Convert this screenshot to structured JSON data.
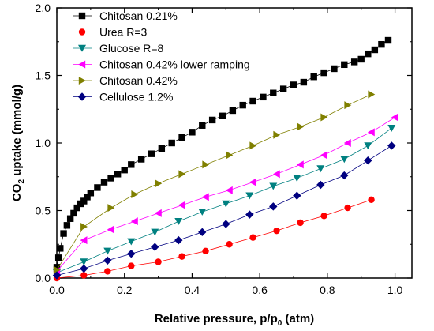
{
  "chart_data": {
    "type": "scatter",
    "title": "",
    "xlabel": "Relative pressure, p/p",
    "xlabel_sub": "0",
    "xlabel_suffix": " (atm)",
    "ylabel": "CO",
    "ylabel_sub": "2",
    "ylabel_suffix": " uptake (mmol/g)",
    "xlim": [
      0.0,
      1.05
    ],
    "ylim": [
      0.0,
      2.0
    ],
    "xticks": [
      "0.0",
      "0.2",
      "0.4",
      "0.6",
      "0.8",
      "1.0"
    ],
    "yticks": [
      "0.0",
      "0.5",
      "1.0",
      "1.5",
      "2.0"
    ],
    "grid": false,
    "legend_position": "top-left",
    "series": [
      {
        "name": "Chitosan 0.21%",
        "marker": "square",
        "color": "#000000",
        "x": [
          0.0,
          0.005,
          0.01,
          0.02,
          0.03,
          0.04,
          0.05,
          0.06,
          0.07,
          0.08,
          0.09,
          0.1,
          0.12,
          0.14,
          0.16,
          0.18,
          0.2,
          0.22,
          0.25,
          0.28,
          0.31,
          0.34,
          0.37,
          0.4,
          0.43,
          0.46,
          0.49,
          0.52,
          0.55,
          0.58,
          0.61,
          0.64,
          0.67,
          0.7,
          0.73,
          0.76,
          0.79,
          0.82,
          0.85,
          0.88,
          0.9,
          0.92,
          0.94,
          0.96,
          0.98
        ],
        "y": [
          0.08,
          0.15,
          0.22,
          0.33,
          0.39,
          0.44,
          0.48,
          0.52,
          0.55,
          0.57,
          0.6,
          0.63,
          0.67,
          0.71,
          0.74,
          0.77,
          0.8,
          0.84,
          0.88,
          0.92,
          0.96,
          1.0,
          1.04,
          1.08,
          1.13,
          1.17,
          1.2,
          1.24,
          1.28,
          1.31,
          1.34,
          1.37,
          1.4,
          1.43,
          1.45,
          1.49,
          1.52,
          1.55,
          1.58,
          1.6,
          1.62,
          1.66,
          1.69,
          1.73,
          1.76
        ]
      },
      {
        "name": "Urea R=3",
        "marker": "circle",
        "color": "#ff0000",
        "x": [
          0.0,
          0.08,
          0.15,
          0.22,
          0.3,
          0.37,
          0.44,
          0.51,
          0.58,
          0.65,
          0.72,
          0.79,
          0.86,
          0.93
        ],
        "y": [
          0.0,
          0.02,
          0.05,
          0.09,
          0.12,
          0.16,
          0.2,
          0.25,
          0.3,
          0.35,
          0.41,
          0.46,
          0.52,
          0.58
        ]
      },
      {
        "name": "Glucose R=8",
        "marker": "triangle-down",
        "color": "#008080",
        "x": [
          0.0,
          0.08,
          0.15,
          0.22,
          0.29,
          0.36,
          0.43,
          0.5,
          0.57,
          0.64,
          0.71,
          0.78,
          0.85,
          0.92,
          0.99
        ],
        "y": [
          0.04,
          0.12,
          0.2,
          0.27,
          0.34,
          0.42,
          0.49,
          0.55,
          0.61,
          0.68,
          0.74,
          0.81,
          0.88,
          0.98,
          1.11
        ]
      },
      {
        "name": "Chitosan 0.42% lower ramping",
        "marker": "triangle-left",
        "color": "#ff00ff",
        "x": [
          0.0,
          0.08,
          0.16,
          0.23,
          0.3,
          0.37,
          0.44,
          0.51,
          0.58,
          0.65,
          0.72,
          0.79,
          0.86,
          0.93,
          1.0
        ],
        "y": [
          0.05,
          0.28,
          0.36,
          0.42,
          0.48,
          0.54,
          0.6,
          0.65,
          0.71,
          0.77,
          0.84,
          0.91,
          1.0,
          1.08,
          1.19
        ]
      },
      {
        "name": "Chitosan 0.42%",
        "marker": "triangle-right",
        "color": "#808000",
        "x": [
          0.0,
          0.08,
          0.16,
          0.23,
          0.3,
          0.37,
          0.44,
          0.51,
          0.58,
          0.65,
          0.72,
          0.79,
          0.86,
          0.93
        ],
        "y": [
          0.06,
          0.38,
          0.52,
          0.62,
          0.7,
          0.77,
          0.84,
          0.91,
          0.98,
          1.06,
          1.12,
          1.19,
          1.28,
          1.36
        ]
      },
      {
        "name": "Cellulose 1.2%",
        "marker": "diamond",
        "color": "#000080",
        "x": [
          0.0,
          0.08,
          0.15,
          0.22,
          0.29,
          0.36,
          0.43,
          0.5,
          0.57,
          0.64,
          0.71,
          0.78,
          0.85,
          0.92,
          0.99
        ],
        "y": [
          0.02,
          0.07,
          0.13,
          0.18,
          0.23,
          0.28,
          0.34,
          0.4,
          0.47,
          0.53,
          0.61,
          0.69,
          0.76,
          0.87,
          0.98
        ]
      }
    ]
  }
}
